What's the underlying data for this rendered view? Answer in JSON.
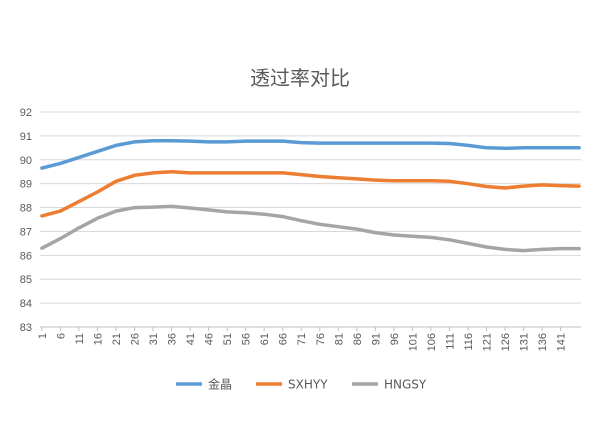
{
  "chart_data": {
    "type": "line",
    "title": "透过率对比",
    "xlabel": "",
    "ylabel": "",
    "ylim": [
      83,
      92
    ],
    "yticks": [
      83,
      84,
      85,
      86,
      87,
      88,
      89,
      90,
      91,
      92
    ],
    "x_range": [
      1,
      146
    ],
    "x_tick_labels": [
      "1",
      "6",
      "11",
      "16",
      "21",
      "26",
      "31",
      "36",
      "41",
      "46",
      "51",
      "56",
      "61",
      "66",
      "71",
      "76",
      "81",
      "86",
      "91",
      "96",
      "101",
      "106",
      "111",
      "116",
      "121",
      "126",
      "131",
      "136",
      "141"
    ],
    "grid": "horizontal",
    "legend_position": "bottom",
    "series": [
      {
        "name": "金晶",
        "color": "#5b9bd5",
        "points": [
          [
            1,
            89.65
          ],
          [
            6,
            89.85
          ],
          [
            11,
            90.1
          ],
          [
            16,
            90.35
          ],
          [
            21,
            90.6
          ],
          [
            26,
            90.75
          ],
          [
            31,
            90.8
          ],
          [
            36,
            90.8
          ],
          [
            41,
            90.78
          ],
          [
            46,
            90.75
          ],
          [
            51,
            90.75
          ],
          [
            56,
            90.78
          ],
          [
            61,
            90.78
          ],
          [
            66,
            90.78
          ],
          [
            71,
            90.72
          ],
          [
            76,
            90.7
          ],
          [
            81,
            90.7
          ],
          [
            86,
            90.7
          ],
          [
            91,
            90.7
          ],
          [
            96,
            90.7
          ],
          [
            101,
            90.7
          ],
          [
            106,
            90.7
          ],
          [
            111,
            90.68
          ],
          [
            116,
            90.6
          ],
          [
            121,
            90.5
          ],
          [
            126,
            90.48
          ],
          [
            131,
            90.5
          ],
          [
            136,
            90.5
          ],
          [
            141,
            90.5
          ],
          [
            146,
            90.5
          ]
        ]
      },
      {
        "name": "SXHYY",
        "color": "#ed7d31",
        "points": [
          [
            1,
            87.65
          ],
          [
            6,
            87.85
          ],
          [
            11,
            88.25
          ],
          [
            16,
            88.65
          ],
          [
            21,
            89.1
          ],
          [
            26,
            89.35
          ],
          [
            31,
            89.45
          ],
          [
            36,
            89.5
          ],
          [
            41,
            89.45
          ],
          [
            46,
            89.45
          ],
          [
            51,
            89.45
          ],
          [
            56,
            89.45
          ],
          [
            61,
            89.45
          ],
          [
            66,
            89.45
          ],
          [
            71,
            89.38
          ],
          [
            76,
            89.3
          ],
          [
            81,
            89.25
          ],
          [
            86,
            89.2
          ],
          [
            91,
            89.15
          ],
          [
            96,
            89.12
          ],
          [
            101,
            89.12
          ],
          [
            106,
            89.12
          ],
          [
            111,
            89.1
          ],
          [
            116,
            89.0
          ],
          [
            121,
            88.88
          ],
          [
            126,
            88.82
          ],
          [
            131,
            88.9
          ],
          [
            136,
            88.95
          ],
          [
            141,
            88.92
          ],
          [
            146,
            88.9
          ]
        ]
      },
      {
        "name": "HNGSY",
        "color": "#a5a5a5",
        "points": [
          [
            1,
            86.3
          ],
          [
            6,
            86.7
          ],
          [
            11,
            87.15
          ],
          [
            16,
            87.55
          ],
          [
            21,
            87.85
          ],
          [
            26,
            88.0
          ],
          [
            31,
            88.02
          ],
          [
            36,
            88.05
          ],
          [
            41,
            87.98
          ],
          [
            46,
            87.9
          ],
          [
            51,
            87.82
          ],
          [
            56,
            87.78
          ],
          [
            61,
            87.72
          ],
          [
            66,
            87.62
          ],
          [
            71,
            87.45
          ],
          [
            76,
            87.3
          ],
          [
            81,
            87.2
          ],
          [
            86,
            87.1
          ],
          [
            91,
            86.95
          ],
          [
            96,
            86.85
          ],
          [
            101,
            86.8
          ],
          [
            106,
            86.75
          ],
          [
            111,
            86.65
          ],
          [
            116,
            86.5
          ],
          [
            121,
            86.35
          ],
          [
            126,
            86.25
          ],
          [
            131,
            86.2
          ],
          [
            136,
            86.25
          ],
          [
            141,
            86.28
          ],
          [
            146,
            86.28
          ]
        ]
      }
    ]
  }
}
